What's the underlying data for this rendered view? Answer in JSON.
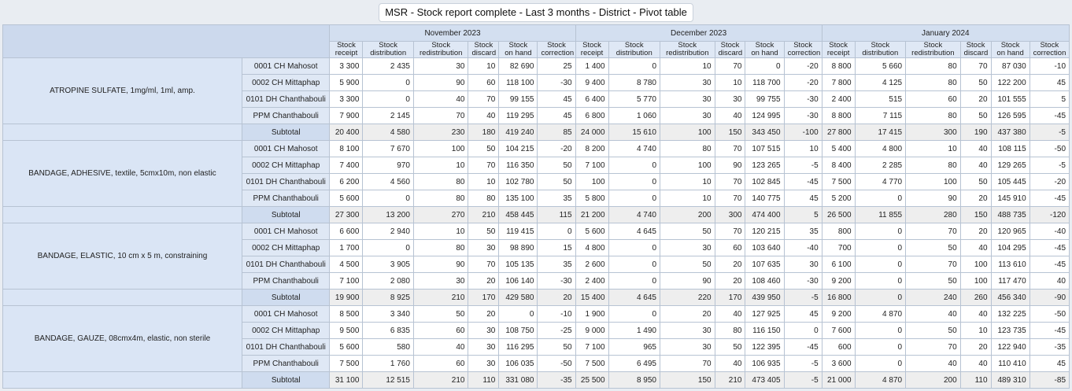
{
  "title": "MSR - Stock report complete - Last 3 months - District - Pivot table",
  "months": [
    "November 2023",
    "December 2023",
    "January 2024"
  ],
  "columns": [
    [
      "Stock",
      "receipt"
    ],
    [
      "Stock",
      "distribution"
    ],
    [
      "Stock",
      "redistribution"
    ],
    [
      "Stock",
      "discard"
    ],
    [
      "Stock",
      "on hand"
    ],
    [
      "Stock",
      "correction"
    ]
  ],
  "subtotal_label": "Subtotal",
  "groups": [
    {
      "item": "ATROPINE SULFATE, 1mg/ml, 1ml, amp.",
      "rows": [
        {
          "loc": "0001 CH Mahosot",
          "v": [
            "3 300",
            "2 435",
            "30",
            "10",
            "82 690",
            "25",
            "1 400",
            "0",
            "10",
            "70",
            "0",
            "-20",
            "8 800",
            "5 660",
            "80",
            "70",
            "87 030",
            "-10"
          ]
        },
        {
          "loc": "0002 CH Mittaphap",
          "v": [
            "5 900",
            "0",
            "90",
            "60",
            "118 100",
            "-30",
            "9 400",
            "8 780",
            "30",
            "10",
            "118 700",
            "-20",
            "7 800",
            "4 125",
            "80",
            "50",
            "122 200",
            "45"
          ]
        },
        {
          "loc": "0101 DH Chanthabouli",
          "v": [
            "3 300",
            "0",
            "40",
            "70",
            "99 155",
            "45",
            "6 400",
            "5 770",
            "30",
            "30",
            "99 755",
            "-30",
            "2 400",
            "515",
            "60",
            "20",
            "101 555",
            "5"
          ]
        },
        {
          "loc": "PPM Chanthabouli",
          "v": [
            "7 900",
            "2 145",
            "70",
            "40",
            "119 295",
            "45",
            "6 800",
            "1 060",
            "30",
            "40",
            "124 995",
            "-30",
            "8 800",
            "7 115",
            "80",
            "50",
            "126 595",
            "-45"
          ]
        }
      ],
      "subtotal": [
        "20 400",
        "4 580",
        "230",
        "180",
        "419 240",
        "85",
        "24 000",
        "15 610",
        "100",
        "150",
        "343 450",
        "-100",
        "27 800",
        "17 415",
        "300",
        "190",
        "437 380",
        "-5"
      ]
    },
    {
      "item": "BANDAGE, ADHESIVE, textile, 5cmx10m, non elastic",
      "rows": [
        {
          "loc": "0001 CH Mahosot",
          "v": [
            "8 100",
            "7 670",
            "100",
            "50",
            "104 215",
            "-20",
            "8 200",
            "4 740",
            "80",
            "70",
            "107 515",
            "10",
            "5 400",
            "4 800",
            "10",
            "40",
            "108 115",
            "-50"
          ]
        },
        {
          "loc": "0002 CH Mittaphap",
          "v": [
            "7 400",
            "970",
            "10",
            "70",
            "116 350",
            "50",
            "7 100",
            "0",
            "100",
            "90",
            "123 265",
            "-5",
            "8 400",
            "2 285",
            "80",
            "40",
            "129 265",
            "-5"
          ]
        },
        {
          "loc": "0101 DH Chanthabouli",
          "v": [
            "6 200",
            "4 560",
            "80",
            "10",
            "102 780",
            "50",
            "100",
            "0",
            "10",
            "70",
            "102 845",
            "-45",
            "7 500",
            "4 770",
            "100",
            "50",
            "105 445",
            "-20"
          ]
        },
        {
          "loc": "PPM Chanthabouli",
          "v": [
            "5 600",
            "0",
            "80",
            "80",
            "135 100",
            "35",
            "5 800",
            "0",
            "10",
            "70",
            "140 775",
            "45",
            "5 200",
            "0",
            "90",
            "20",
            "145 910",
            "-45"
          ]
        }
      ],
      "subtotal": [
        "27 300",
        "13 200",
        "270",
        "210",
        "458 445",
        "115",
        "21 200",
        "4 740",
        "200",
        "300",
        "474 400",
        "5",
        "26 500",
        "11 855",
        "280",
        "150",
        "488 735",
        "-120"
      ]
    },
    {
      "item": "BANDAGE, ELASTIC, 10 cm x 5 m, constraining",
      "rows": [
        {
          "loc": "0001 CH Mahosot",
          "v": [
            "6 600",
            "2 940",
            "10",
            "50",
            "119 415",
            "0",
            "5 600",
            "4 645",
            "50",
            "70",
            "120 215",
            "35",
            "800",
            "0",
            "70",
            "20",
            "120 965",
            "-40"
          ]
        },
        {
          "loc": "0002 CH Mittaphap",
          "v": [
            "1 700",
            "0",
            "80",
            "30",
            "98 890",
            "15",
            "4 800",
            "0",
            "30",
            "60",
            "103 640",
            "-40",
            "700",
            "0",
            "50",
            "40",
            "104 295",
            "-45"
          ]
        },
        {
          "loc": "0101 DH Chanthabouli",
          "v": [
            "4 500",
            "3 905",
            "90",
            "70",
            "105 135",
            "35",
            "2 600",
            "0",
            "50",
            "20",
            "107 635",
            "30",
            "6 100",
            "0",
            "70",
            "100",
            "113 610",
            "-45"
          ]
        },
        {
          "loc": "PPM Chanthabouli",
          "v": [
            "7 100",
            "2 080",
            "30",
            "20",
            "106 140",
            "-30",
            "2 400",
            "0",
            "90",
            "20",
            "108 460",
            "-30",
            "9 200",
            "0",
            "50",
            "100",
            "117 470",
            "40"
          ]
        }
      ],
      "subtotal": [
        "19 900",
        "8 925",
        "210",
        "170",
        "429 580",
        "20",
        "15 400",
        "4 645",
        "220",
        "170",
        "439 950",
        "-5",
        "16 800",
        "0",
        "240",
        "260",
        "456 340",
        "-90"
      ]
    },
    {
      "item": "BANDAGE, GAUZE, 08cmx4m, elastic, non sterile",
      "rows": [
        {
          "loc": "0001 CH Mahosot",
          "v": [
            "8 500",
            "3 340",
            "50",
            "20",
            "0",
            "-10",
            "1 900",
            "0",
            "20",
            "40",
            "127 925",
            "45",
            "9 200",
            "4 870",
            "40",
            "40",
            "132 225",
            "-50"
          ]
        },
        {
          "loc": "0002 CH Mittaphap",
          "v": [
            "9 500",
            "6 835",
            "60",
            "30",
            "108 750",
            "-25",
            "9 000",
            "1 490",
            "30",
            "80",
            "116 150",
            "0",
            "7 600",
            "0",
            "50",
            "10",
            "123 735",
            "-45"
          ]
        },
        {
          "loc": "0101 DH Chanthabouli",
          "v": [
            "5 600",
            "580",
            "40",
            "30",
            "116 295",
            "50",
            "7 100",
            "965",
            "30",
            "50",
            "122 395",
            "-45",
            "600",
            "0",
            "70",
            "20",
            "122 940",
            "-35"
          ]
        },
        {
          "loc": "PPM Chanthabouli",
          "v": [
            "7 500",
            "1 760",
            "60",
            "30",
            "106 035",
            "-50",
            "7 500",
            "6 495",
            "70",
            "40",
            "106 935",
            "-5",
            "3 600",
            "0",
            "40",
            "40",
            "110 410",
            "45"
          ]
        }
      ],
      "subtotal": [
        "31 100",
        "12 515",
        "210",
        "110",
        "331 080",
        "-35",
        "25 500",
        "8 950",
        "150",
        "210",
        "473 405",
        "-5",
        "21 000",
        "4 870",
        "200",
        "110",
        "489 310",
        "-85"
      ]
    }
  ]
}
